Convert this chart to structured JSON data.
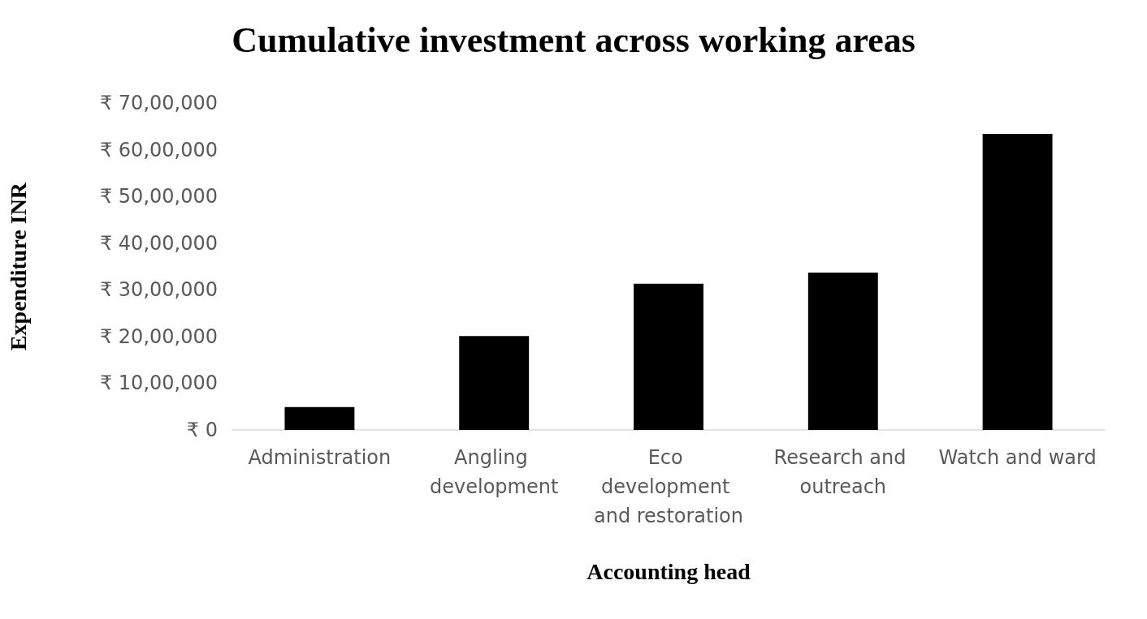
{
  "chart_data": {
    "type": "bar",
    "title": "Cumulative investment across working areas",
    "xlabel": "Accounting head",
    "ylabel": "Expenditure INR",
    "categories": [
      "Administration",
      "Angling development",
      "Eco development and restoration",
      "Research and outreach",
      "Watch and ward"
    ],
    "values": [
      490000,
      2010000,
      3130000,
      3370000,
      6340000
    ],
    "color": "#000000",
    "ylim": [
      0,
      7000000
    ],
    "yticks": [
      {
        "value": 0,
        "label": "₹ 0"
      },
      {
        "value": 1000000,
        "label": "₹ 10,00,000"
      },
      {
        "value": 2000000,
        "label": "₹ 20,00,000"
      },
      {
        "value": 3000000,
        "label": "₹ 30,00,000"
      },
      {
        "value": 4000000,
        "label": "₹ 40,00,000"
      },
      {
        "value": 5000000,
        "label": "₹ 50,00,000"
      },
      {
        "value": 6000000,
        "label": "₹ 60,00,000"
      },
      {
        "value": 7000000,
        "label": "₹ 70,00,000"
      }
    ],
    "grid": false
  }
}
